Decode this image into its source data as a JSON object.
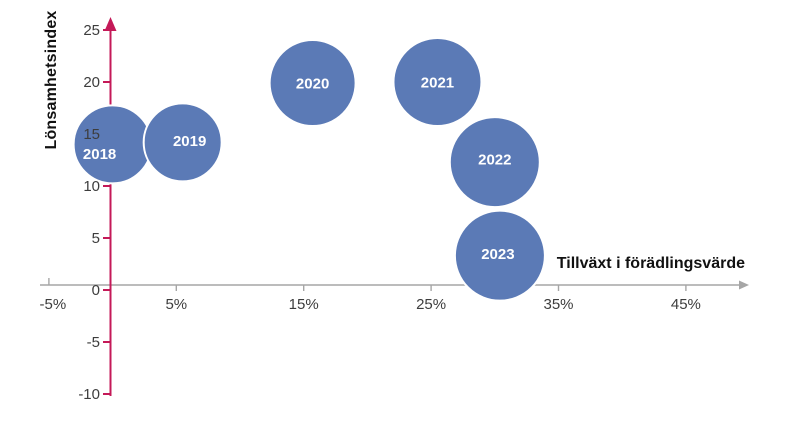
{
  "chart_data": {
    "type": "scatter",
    "variant": "bubble",
    "title": "",
    "xlabel": "Tillväxt i förädlingsvärde",
    "ylabel": "Lönsamhetsindex",
    "xlim": [
      -5,
      50
    ],
    "ylim": [
      -10,
      25
    ],
    "grid": false,
    "legend": "none",
    "x_ticks": {
      "labels": [
        "-5%",
        "5%",
        "15%",
        "25%",
        "35%",
        "45%"
      ],
      "values": [
        -5,
        5,
        15,
        25,
        35,
        45
      ]
    },
    "y_ticks": {
      "labels": [
        "25",
        "20",
        "15",
        "10",
        "5",
        "0",
        "-5",
        "-10"
      ],
      "values": [
        25,
        20,
        15,
        10,
        5,
        0,
        -5,
        -10
      ]
    },
    "points": [
      {
        "label": "2018",
        "x": 0,
        "y": 14,
        "radius_px": 39,
        "label_offset": [
          -13,
          9
        ]
      },
      {
        "label": "2019",
        "x": 5.5,
        "y": 14.2,
        "radius_px": 39,
        "label_offset": [
          7,
          -2
        ]
      },
      {
        "label": "2020",
        "x": 15.7,
        "y": 19.9,
        "radius_px": 43,
        "label_offset": [
          0,
          0
        ]
      },
      {
        "label": "2021",
        "x": 25.5,
        "y": 20,
        "radius_px": 44,
        "label_offset": [
          0,
          0
        ]
      },
      {
        "label": "2022",
        "x": 30,
        "y": 12.3,
        "radius_px": 45,
        "label_offset": [
          0,
          -3
        ]
      },
      {
        "label": "2023",
        "x": 30.4,
        "y": 3.3,
        "radius_px": 45,
        "label_offset": [
          -2,
          -2
        ]
      }
    ],
    "colors": {
      "bubble_fill": "#5B7AB6",
      "bubble_stroke": "#FFFFFF",
      "bubble_label": "#FFFFFF",
      "y_axis": "#C41958",
      "x_axis": "#A6A6A6",
      "tick_label": "#3D3D3D",
      "axis_title": "#111111"
    }
  }
}
